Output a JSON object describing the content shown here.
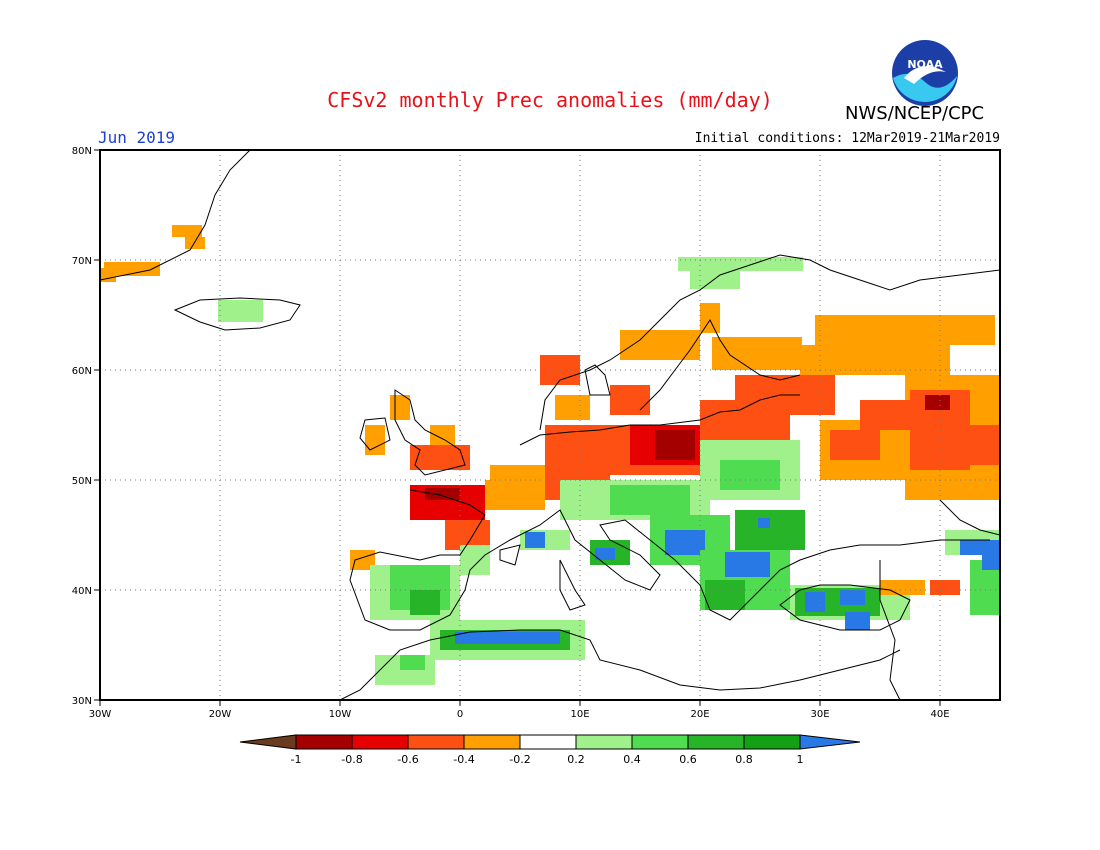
{
  "header": {
    "title": "CFSv2 monthly Prec anomalies (mm/day)",
    "agency": "NWS/NCEP/CPC",
    "month": "Jun 2019",
    "initial_conditions": "Initial conditions: 12Mar2019-21Mar2019",
    "logo_text": "NOAA"
  },
  "axes": {
    "lon_labels": [
      "30W",
      "20W",
      "10W",
      "0",
      "10E",
      "20E",
      "30E",
      "40E"
    ],
    "lat_labels": [
      "80N",
      "70N",
      "60N",
      "50N",
      "40N",
      "30N"
    ]
  },
  "colorbar": {
    "tick_labels": [
      "-1",
      "-0.8",
      "-0.6",
      "-0.4",
      "-0.2",
      "0.2",
      "0.4",
      "0.6",
      "0.8",
      "1"
    ],
    "colors": {
      "below_min": "#6b3b1f",
      "minus_1_to_0_8": "#a50000",
      "minus_0_8_to_0_6": "#e60000",
      "minus_0_6_to_0_4": "#ff5014",
      "minus_0_4_to_0_2": "#ffa000",
      "minus_0_2_to_0_2": "#ffffff",
      "plus_0_2_to_0_4": "#a0f08c",
      "plus_0_4_to_0_6": "#50dc50",
      "plus_0_6_to_0_8": "#28b428",
      "plus_0_8_to_1": "#14a014",
      "above_max": "#2878e6"
    }
  },
  "map": {
    "projection": "equirectangular",
    "lon_range": [
      -30,
      45
    ],
    "lat_range": [
      30,
      80
    ],
    "grid": "dotted every 10 degrees"
  }
}
